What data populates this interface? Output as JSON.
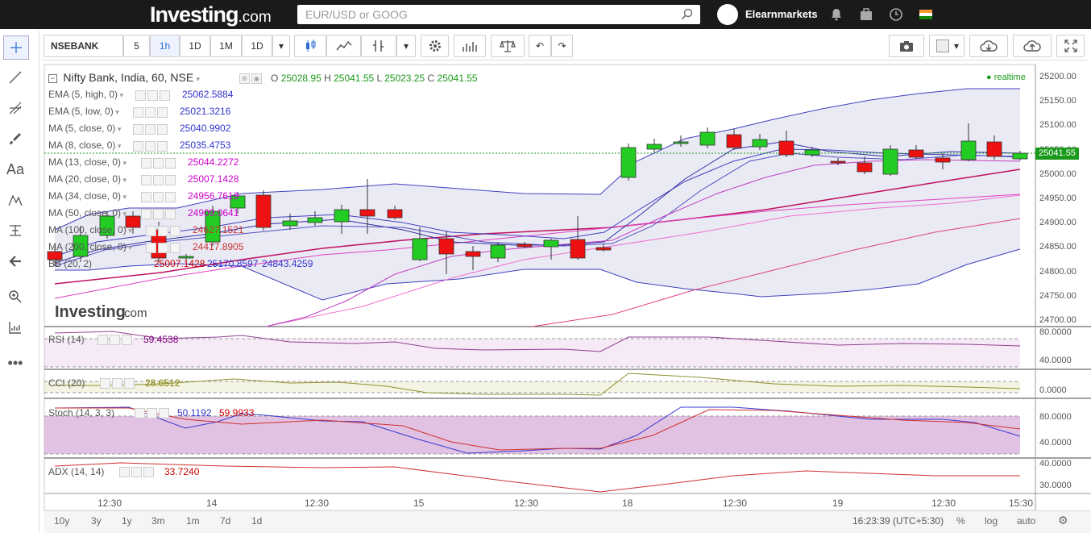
{
  "header": {
    "logo_main": "Investing",
    "logo_suffix": ".com",
    "search_placeholder": "EUR/USD or GOOG",
    "username": "Elearnmarkets"
  },
  "toolbar": {
    "symbol": "NSEBANK",
    "interval_5": "5",
    "interval_1h": "1h",
    "interval_1D": "1D",
    "interval_1M": "1M",
    "interval_dropdown": "1D"
  },
  "main": {
    "title": "Nifty Bank, India, 60, NSE",
    "ohlc": {
      "o_label": "O",
      "o": "25028.95",
      "h_label": "H",
      "h": "25041.55",
      "l_label": "L",
      "l": "25023.25",
      "c_label": "C",
      "c": "25041.55"
    },
    "realtime": "realtime",
    "indicators": [
      {
        "name": "EMA (5, high, 0)",
        "value": "25062.5884",
        "color": "#3333cc"
      },
      {
        "name": "EMA (5, low, 0)",
        "value": "25021.3216",
        "color": "#3333cc"
      },
      {
        "name": "MA (5, close, 0)",
        "value": "25040.9902",
        "color": "#3333cc"
      },
      {
        "name": "MA (8, close, 0)",
        "value": "25035.4753",
        "color": "#3333cc"
      },
      {
        "name": "MA (13, close, 0)",
        "value": "25044.2272",
        "color": "#cc00cc"
      },
      {
        "name": "MA (20, close, 0)",
        "value": "25007.1428",
        "color": "#cc00cc"
      },
      {
        "name": "MA (34, close, 0)",
        "value": "24956.7619",
        "color": "#cc00cc"
      },
      {
        "name": "MA (50, close, 0)",
        "value": "24909.0641",
        "color": "#cc00cc"
      },
      {
        "name": "MA (100, close, 0)",
        "value": "24627.1521",
        "color": "#cc3333"
      },
      {
        "name": "MA (200, close, 0)",
        "value": "24417.8905",
        "color": "#cc3333"
      }
    ],
    "bb": {
      "name": "BB (20, 2)",
      "v1": "25007.1428",
      "v2": "25170.8597",
      "v3": "24843.4259"
    },
    "watermark_main": "Investing",
    "watermark_suffix": ".com",
    "price_axis": [
      "25200.00",
      "25150.00",
      "25100.00",
      "25050.00",
      "25000.00",
      "24950.00",
      "24900.00",
      "24850.00",
      "24800.00",
      "24750.00",
      "24700.00"
    ],
    "last_price": "25041.55"
  },
  "rsi": {
    "name": "RSI (14)",
    "value": "59.4538",
    "axis": [
      "80.0000",
      "40.0000"
    ]
  },
  "cci": {
    "name": "CCI (20)",
    "value": "28.6512",
    "axis": [
      "0.0000"
    ]
  },
  "stoch": {
    "name": "Stoch (14, 3, 3)",
    "v1": "50.1192",
    "v2": "59.9933",
    "axis": [
      "80.0000",
      "40.0000"
    ]
  },
  "adx": {
    "name": "ADX (14, 14)",
    "value": "33.7240",
    "axis": [
      "40.0000",
      "30.0000"
    ]
  },
  "time_axis": [
    "12:30",
    "14",
    "12:30",
    "15",
    "12:30",
    "18",
    "12:30",
    "19",
    "12:30",
    "15:30"
  ],
  "bottom": {
    "ranges": [
      "10y",
      "3y",
      "1y",
      "3m",
      "1m",
      "7d",
      "1d"
    ],
    "clock": "16:23:39 (UTC+5:30)",
    "pct": "%",
    "log": "log",
    "auto": "auto"
  }
}
